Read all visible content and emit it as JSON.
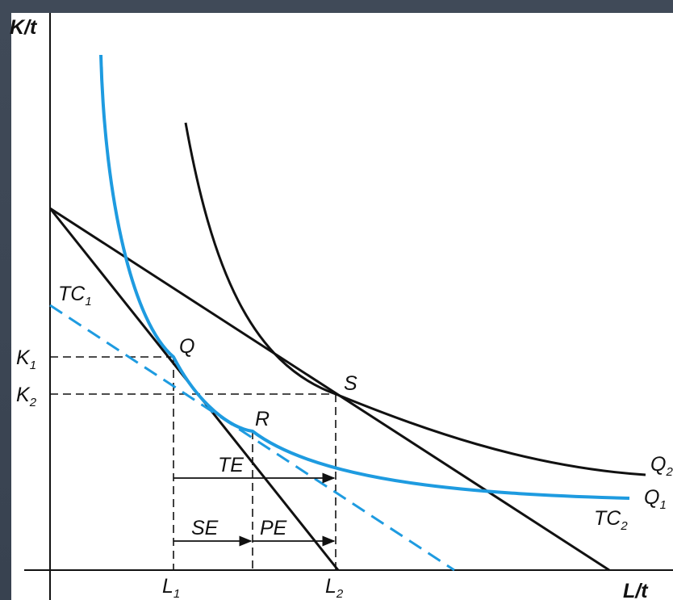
{
  "axes": {
    "y_label": "K/t",
    "x_label": "L/t"
  },
  "curves": {
    "q1_label": "Q",
    "q1_sub": "1",
    "q2_label": "Q",
    "q2_sub": "2",
    "q1_color": "#1e9be0",
    "q2_color": "#111111"
  },
  "lines": {
    "tc1_label": "TC",
    "tc1_sub": "1",
    "tc2_label": "TC",
    "tc2_sub": "2",
    "tc1_color": "#1e9be0"
  },
  "points": {
    "q": "Q",
    "r": "R",
    "s": "S"
  },
  "ticks": {
    "k": "K",
    "k1_sub": "1",
    "k2_sub": "2",
    "l": "L",
    "l1_sub": "1",
    "l2_sub": "2"
  },
  "effects": {
    "te": "TE",
    "se": "SE",
    "pe": "PE"
  }
}
